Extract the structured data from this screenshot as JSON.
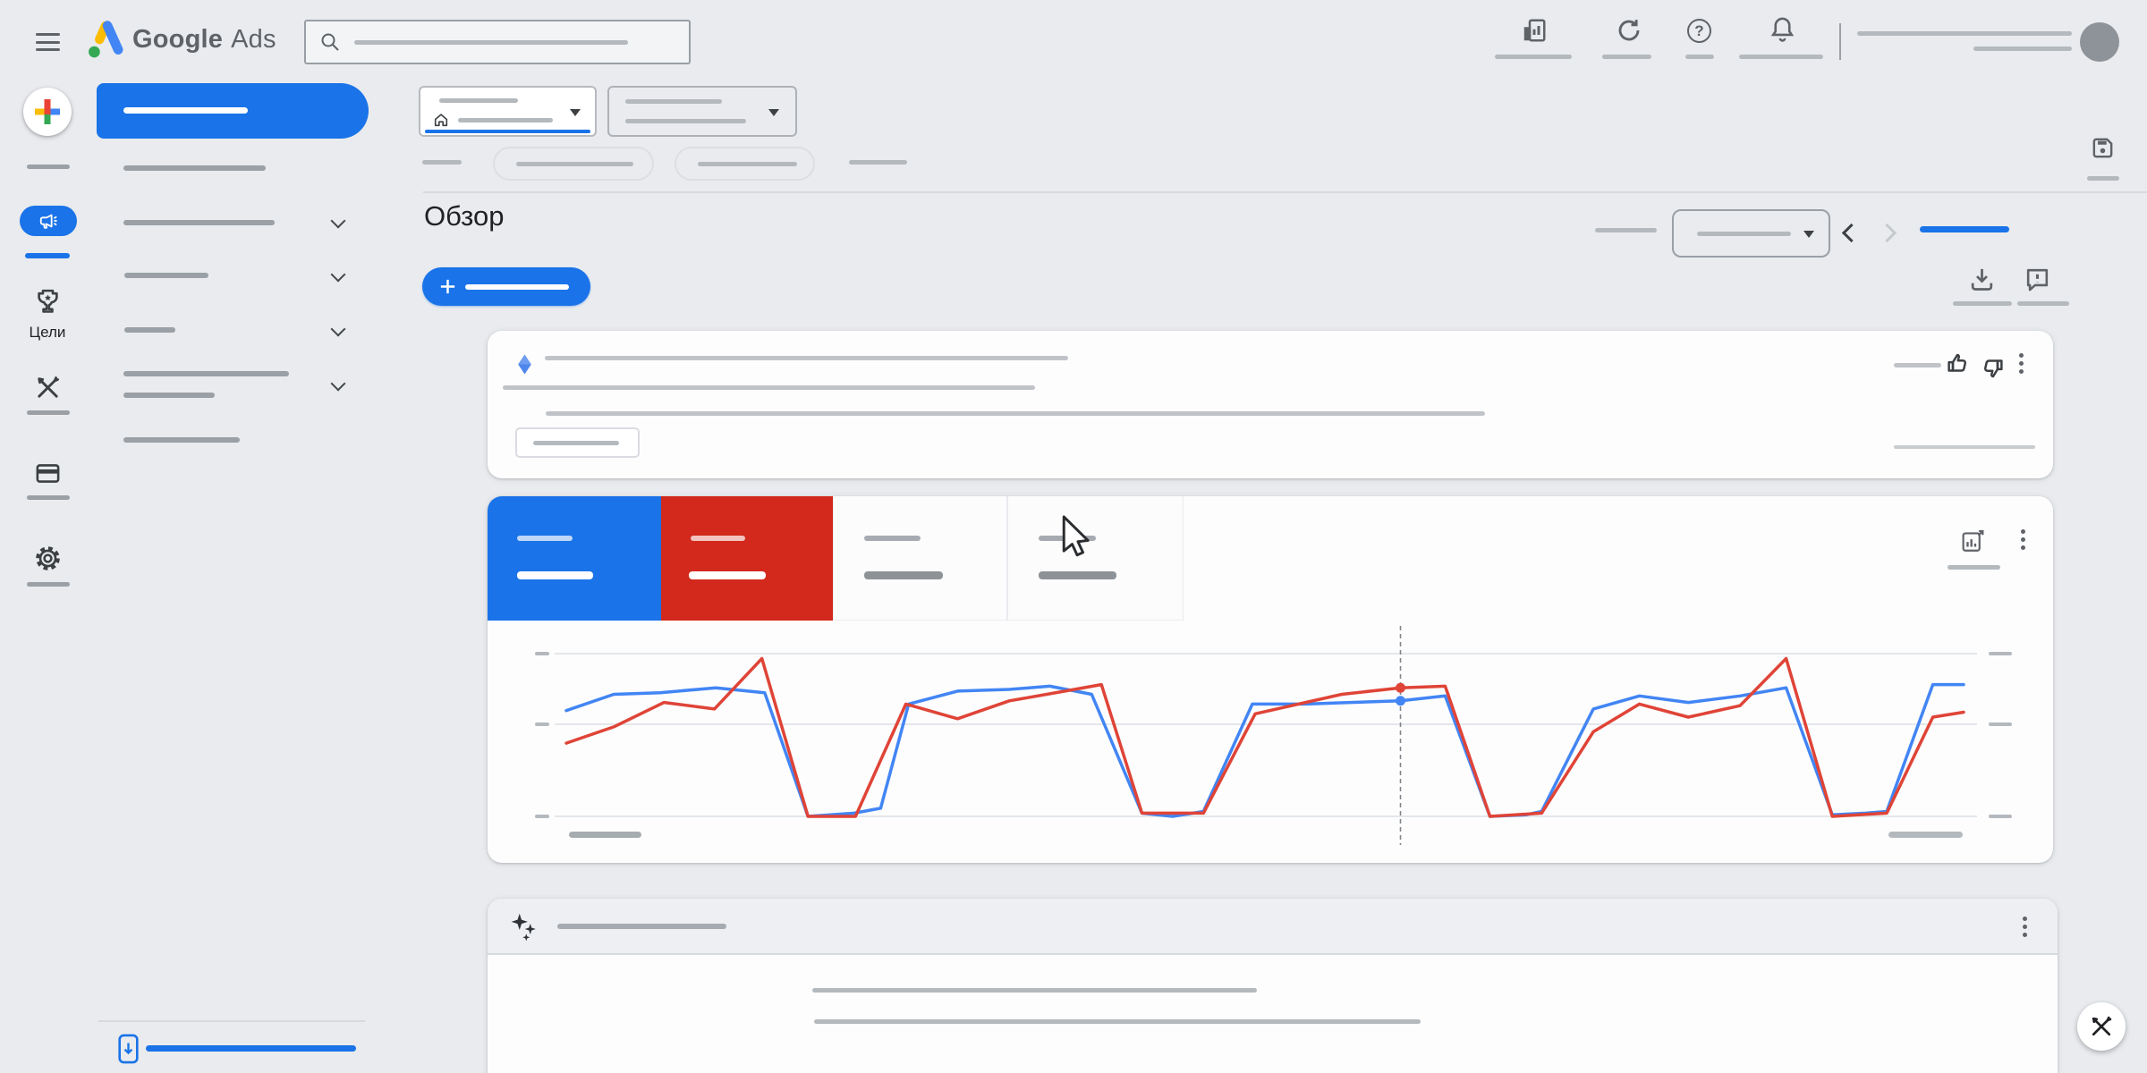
{
  "topbar": {
    "brand": {
      "part1": "Google",
      "part2": "Ads"
    },
    "help_glyph": "?",
    "icons": [
      "appearance-report-icon",
      "refresh-icon",
      "help-icon",
      "notifications-bell-icon"
    ]
  },
  "sidebar": {
    "goals_label": "Цели",
    "rail_icons": [
      "create-plus-icon",
      "campaigns-megaphone-icon",
      "goals-trophy-icon",
      "tools-icon",
      "billing-card-icon",
      "settings-gear-icon",
      "mobile-app-icon"
    ]
  },
  "page": {
    "title": "Обзор"
  },
  "theme": {
    "page_bg": "#e9ebee",
    "card_bg": "#fdfdfe",
    "blue": "#1a73e8",
    "red": "#d2291c",
    "chart_blue": "#4285f4",
    "chart_red": "#df4437",
    "skeleton": "#b7bbc0",
    "skeleton_dark": "#9aa0a6",
    "text_dark": "#202124",
    "icon_gray": "#5f6368",
    "border": "#dadce0"
  },
  "chart_data": {
    "type": "line",
    "title": "",
    "xlabel": "",
    "ylabel": "",
    "note": "Axis tick and legend labels are skeleton placeholder bars (no readable text). Values normalized 0-100 between bottom and top gridline.",
    "x_range": [
      0,
      100
    ],
    "ylim": [
      0,
      100
    ],
    "grid": true,
    "gridlines": [
      0,
      56.6,
      100
    ],
    "legend_position": "tabs-top",
    "series": [
      {
        "name": "metric-1-blue",
        "color": "#4285f4",
        "points": [
          [
            0,
            65
          ],
          [
            3.4,
            75
          ],
          [
            6.7,
            76
          ],
          [
            10.7,
            79
          ],
          [
            14.2,
            76
          ],
          [
            17.3,
            0
          ],
          [
            20.6,
            2
          ],
          [
            22.5,
            5
          ],
          [
            24.5,
            69
          ],
          [
            28,
            77
          ],
          [
            31.7,
            78
          ],
          [
            34.6,
            80
          ],
          [
            37.6,
            75
          ],
          [
            41.2,
            2
          ],
          [
            43.4,
            0
          ],
          [
            45.6,
            3
          ],
          [
            49.1,
            69
          ],
          [
            52.9,
            69
          ],
          [
            56.1,
            70
          ],
          [
            59.7,
            71
          ],
          [
            62.9,
            74
          ],
          [
            66.1,
            0
          ],
          [
            68.7,
            1
          ],
          [
            69.8,
            3
          ],
          [
            73.5,
            66
          ],
          [
            76.8,
            74
          ],
          [
            80.3,
            70
          ],
          [
            84,
            74
          ],
          [
            87.3,
            79
          ],
          [
            90.6,
            1
          ],
          [
            93,
            2
          ],
          [
            94.5,
            3
          ],
          [
            97.8,
            81
          ],
          [
            100,
            81
          ]
        ]
      },
      {
        "name": "metric-2-red",
        "color": "#df4437",
        "points": [
          [
            0,
            45
          ],
          [
            3.4,
            55
          ],
          [
            7,
            70
          ],
          [
            10.6,
            66
          ],
          [
            14,
            97
          ],
          [
            17.3,
            0
          ],
          [
            20.7,
            0
          ],
          [
            24.3,
            69
          ],
          [
            28,
            60
          ],
          [
            31.7,
            71
          ],
          [
            35.7,
            77
          ],
          [
            38.3,
            81
          ],
          [
            41.2,
            2
          ],
          [
            45.6,
            2
          ],
          [
            49.3,
            63
          ],
          [
            55.5,
            75
          ],
          [
            59.7,
            79
          ],
          [
            62.9,
            80
          ],
          [
            66.1,
            0
          ],
          [
            69.8,
            2
          ],
          [
            73.5,
            52
          ],
          [
            76.8,
            69
          ],
          [
            80.3,
            61
          ],
          [
            84,
            68
          ],
          [
            87.3,
            97
          ],
          [
            90.6,
            0
          ],
          [
            94.5,
            2
          ],
          [
            97.8,
            61
          ],
          [
            100,
            64
          ]
        ]
      }
    ],
    "hover": {
      "x": 59.7,
      "points": [
        {
          "series": "metric-2-red",
          "v": 79
        },
        {
          "series": "metric-1-blue",
          "v": 71
        }
      ]
    }
  }
}
